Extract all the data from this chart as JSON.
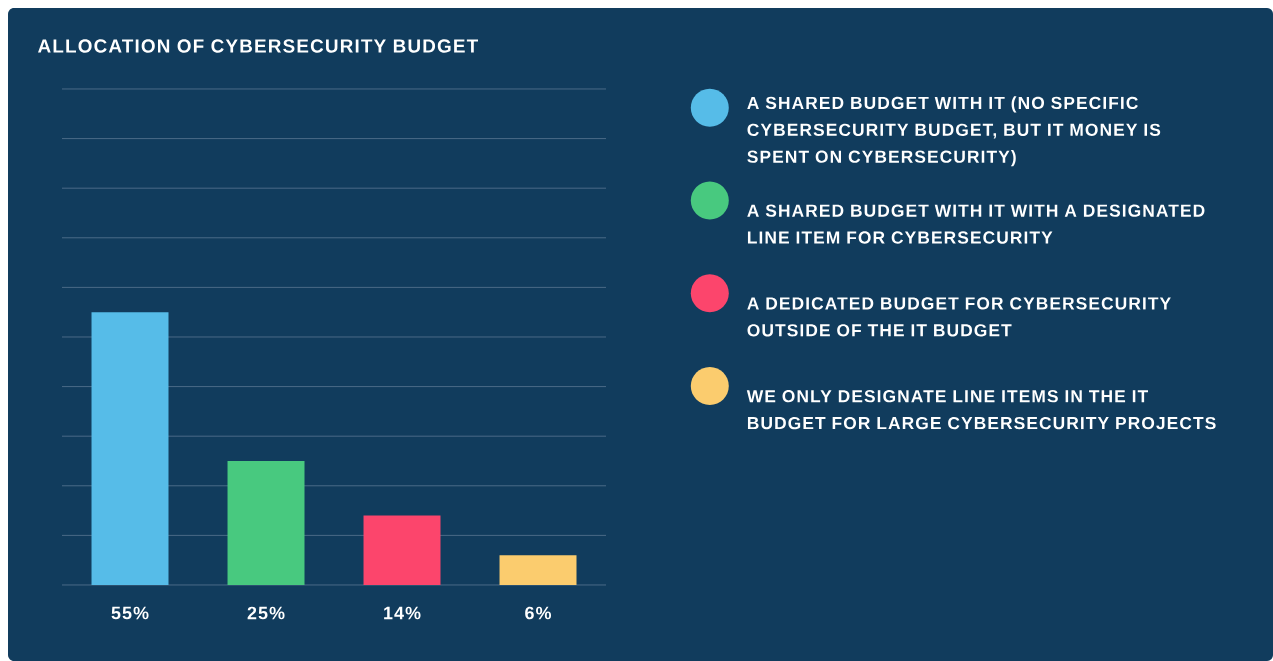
{
  "chart_data": {
    "type": "bar",
    "title": "ALLOCATION OF CYBERSECURITY BUDGET",
    "categories": [
      null,
      null,
      null,
      null
    ],
    "series": [
      {
        "name": "A SHARED BUDGET WITH IT (NO SPECIFIC CYBERSECURITY BUDGET, BUT IT MONEY IS SPENT ON CYBERSECURITY)",
        "color": "#56bce8",
        "values": [
          55,
          null,
          null,
          null
        ],
        "value_labels": [
          "55%",
          null,
          null,
          null
        ]
      },
      {
        "name": "A SHARED BUDGET WITH IT WITH A DESIGNATED LINE ITEM FOR CYBERSECURITY",
        "color": "#48c97f",
        "values": [
          null,
          25,
          null,
          null
        ],
        "value_labels": [
          null,
          "25%",
          null,
          null
        ]
      },
      {
        "name": "A DEDICATED BUDGET FOR CYBERSECURITY OUTSIDE OF THE IT BUDGET",
        "color": "#fc456c",
        "values": [
          null,
          null,
          14,
          null
        ],
        "value_labels": [
          null,
          null,
          "14%",
          null
        ]
      },
      {
        "name": "WE ONLY DESIGNATE LINE ITEMS IN THE IT BUDGET FOR LARGE CYBERSECURITY PROJECTS",
        "color": "#fbcc6e",
        "values": [
          null,
          null,
          null,
          6
        ],
        "value_labels": [
          null,
          null,
          null,
          "6%"
        ]
      }
    ],
    "ylim": [
      0,
      100
    ],
    "yticks": [
      {
        "value": 0,
        "label": null
      },
      {
        "value": 10,
        "label": null
      },
      {
        "value": 20,
        "label": null
      },
      {
        "value": 30,
        "label": null
      },
      {
        "value": 40,
        "label": null
      },
      {
        "value": 50,
        "label": null
      },
      {
        "value": 60,
        "label": null
      },
      {
        "value": 70,
        "label": null
      },
      {
        "value": 80,
        "label": null
      },
      {
        "value": 90,
        "label": null
      },
      {
        "value": 100,
        "label": null
      }
    ],
    "grid": "y",
    "legend": "right",
    "stacked": true
  }
}
